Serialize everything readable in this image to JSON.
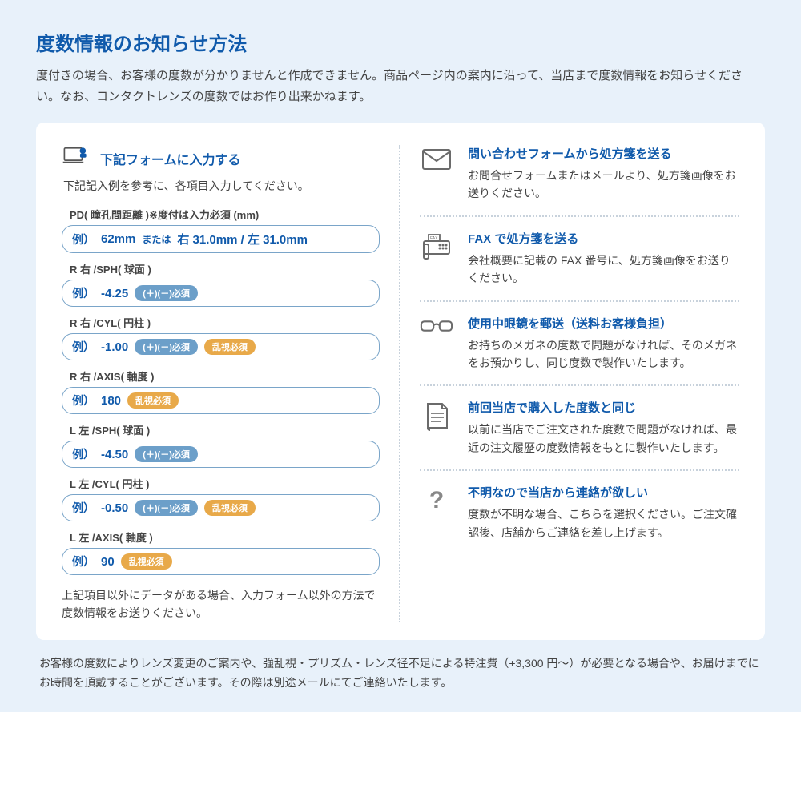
{
  "colors": {
    "page_bg": "#e8f1fa",
    "card_bg": "#ffffff",
    "title_blue": "#105aab",
    "text_grey": "#444444",
    "border_blue": "#7aa5c9",
    "pill_blue": "#6c9fc9",
    "pill_orange": "#e8a949",
    "icon_grey": "#6b6b6b",
    "dotted_divider": "#c8d2dc"
  },
  "header": {
    "title": "度数情報のお知らせ方法",
    "intro": "度付きの場合、お客様の度数が分かりませんと作成できません。商品ページ内の案内に沿って、当店まで度数情報をお知らせください。なお、コンタクトレンズの度数ではお作り出来かねます。"
  },
  "form": {
    "header_title": "下記フォームに入力する",
    "subtitle": "下記記入例を参考に、各項目入力してください。",
    "fields": [
      {
        "label": "PD( 瞳孔間距離 )※度付は入力必須 (mm)",
        "example_prefix": "例）",
        "value_a": "62mm",
        "or": "または",
        "value_b": "右 31.0mm / 左 31.0mm",
        "pills": []
      },
      {
        "label": "R 右 /SPH( 球面 )",
        "example_prefix": "例）",
        "value_a": "-4.25",
        "pills": [
          {
            "text": "(＋)(－)必須",
            "color": "blue"
          }
        ]
      },
      {
        "label": "R 右 /CYL( 円柱 )",
        "example_prefix": "例）",
        "value_a": "-1.00",
        "pills": [
          {
            "text": "(＋)(－)必須",
            "color": "blue"
          },
          {
            "text": "乱視必須",
            "color": "orange"
          }
        ]
      },
      {
        "label": "R 右 /AXIS( 軸度 )",
        "example_prefix": "例）",
        "value_a": "180",
        "pills": [
          {
            "text": "乱視必須",
            "color": "orange"
          }
        ]
      },
      {
        "label": "L 左 /SPH( 球面 )",
        "example_prefix": "例）",
        "value_a": "-4.50",
        "pills": [
          {
            "text": "(＋)(－)必須",
            "color": "blue"
          }
        ]
      },
      {
        "label": "L 左 /CYL( 円柱 )",
        "example_prefix": "例）",
        "value_a": "-0.50",
        "pills": [
          {
            "text": "(＋)(－)必須",
            "color": "blue"
          },
          {
            "text": "乱視必須",
            "color": "orange"
          }
        ]
      },
      {
        "label": "L 左 /AXIS( 軸度 )",
        "example_prefix": "例）",
        "value_a": "90",
        "pills": [
          {
            "text": "乱視必須",
            "color": "orange"
          }
        ]
      }
    ],
    "note": "上記項目以外にデータがある場合、入力フォーム以外の方法で度数情報をお送りください。"
  },
  "methods": [
    {
      "icon": "mail",
      "title": "問い合わせフォームから処方箋を送る",
      "desc": "お問合せフォームまたはメールより、処方箋画像をお送りください。"
    },
    {
      "icon": "fax",
      "title": "FAX で処方箋を送る",
      "desc": "会社概要に記載の FAX 番号に、処方箋画像をお送りください。"
    },
    {
      "icon": "glasses",
      "title": "使用中眼鏡を郵送（送料お客様負担）",
      "desc": "お持ちのメガネの度数で問題がなければ、そのメガネをお預かりし、同じ度数で製作いたします。"
    },
    {
      "icon": "document",
      "title": "前回当店で購入した度数と同じ",
      "desc": "以前に当店でご注文された度数で問題がなければ、最近の注文履歴の度数情報をもとに製作いたします。"
    },
    {
      "icon": "question",
      "title": "不明なので当店から連絡が欲しい",
      "desc": "度数が不明な場合、こちらを選択ください。ご注文確認後、店舗からご連絡を差し上げます。"
    }
  ],
  "footer": "お客様の度数によりレンズ変更のご案内や、強乱視・プリズム・レンズ径不足による特注費（+3,300 円〜）が必要となる場合や、お届けまでにお時間を頂戴することがございます。その際は別途メールにてご連絡いたします。"
}
